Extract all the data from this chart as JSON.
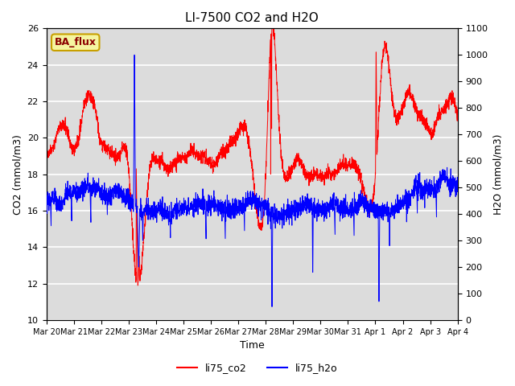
{
  "title": "LI-7500 CO2 and H2O",
  "xlabel": "Time",
  "ylabel_left": "CO2 (mmol/m3)",
  "ylabel_right": "H2O (mmol/m3)",
  "ylim_left": [
    10,
    26
  ],
  "ylim_right": [
    0,
    1100
  ],
  "yticks_left": [
    10,
    12,
    14,
    16,
    18,
    20,
    22,
    24,
    26
  ],
  "yticks_right": [
    0,
    100,
    200,
    300,
    400,
    500,
    600,
    700,
    800,
    900,
    1000,
    1100
  ],
  "date_labels": [
    "Mar 20",
    "Mar 21",
    "Mar 22",
    "Mar 23",
    "Mar 24",
    "Mar 25",
    "Mar 26",
    "Mar 27",
    "Mar 28",
    "Mar 29",
    "Mar 30",
    "Mar 31",
    "Apr 1",
    "Apr 2",
    "Apr 3",
    "Apr 4"
  ],
  "annotation_text": "BA_flux",
  "annotation_bbox_facecolor": "#f5f5a0",
  "annotation_bbox_edgecolor": "#c8a000",
  "axes_facecolor": "#dcdcdc",
  "grid_color": "white",
  "co2_color": "red",
  "h2o_color": "blue",
  "title_fontsize": 11,
  "n_points": 3000
}
